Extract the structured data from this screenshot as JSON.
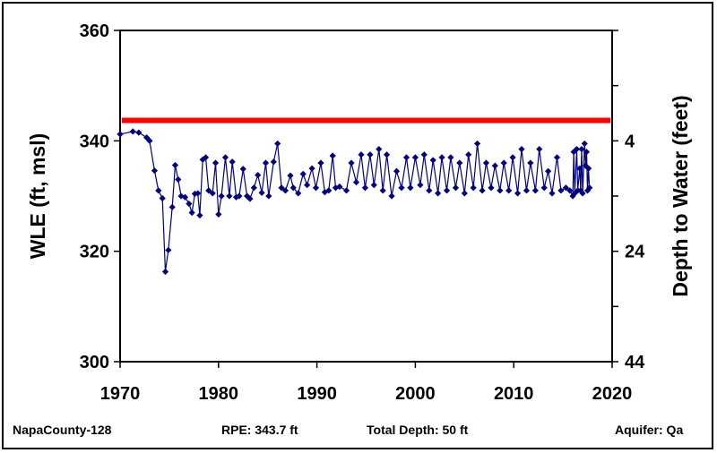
{
  "chart_data": {
    "type": "line",
    "title": "",
    "xlabel": "",
    "ylabel": "WLE (ft, msl)",
    "y2label": "Depth to Water (feet)",
    "xlim": [
      1970,
      2020
    ],
    "ylim": [
      300,
      360
    ],
    "y2lim": [
      44,
      -16
    ],
    "grid": false,
    "x_ticks": [
      "1970",
      "1980",
      "1990",
      "2000",
      "2010",
      "2020"
    ],
    "y_ticks": [
      "300",
      "320",
      "340",
      "360"
    ],
    "y2_ticks": [
      "4",
      "24",
      "44"
    ],
    "reference_line": {
      "value": 343.7,
      "label": "RPE",
      "color": "#ff0000"
    },
    "series": [
      {
        "color": "#000080",
        "marker": "diamond",
        "x": [
          1970.0,
          1971.3,
          1971.9,
          1972.7,
          1973.0,
          1973.5,
          1973.9,
          1974.3,
          1974.6,
          1974.9,
          1975.3,
          1975.6,
          1975.9,
          1976.2,
          1976.6,
          1977.0,
          1977.3,
          1977.6,
          1977.9,
          1978.1,
          1978.4,
          1978.7,
          1979.0,
          1979.4,
          1979.7,
          1980.0,
          1980.3,
          1980.7,
          1981.1,
          1981.4,
          1981.8,
          1982.1,
          1982.5,
          1982.9,
          1983.2,
          1983.6,
          1984.0,
          1984.4,
          1984.8,
          1985.1,
          1985.6,
          1986.0,
          1986.4,
          1986.8,
          1987.3,
          1987.6,
          1988.1,
          1988.6,
          1989.0,
          1989.5,
          1989.9,
          1990.4,
          1990.8,
          1991.2,
          1991.6,
          1991.9,
          1992.3,
          1993.0,
          1993.5,
          1994.0,
          1994.5,
          1994.9,
          1995.4,
          1995.8,
          1996.3,
          1996.7,
          1997.1,
          1997.6,
          1998.1,
          1998.6,
          1999.1,
          1999.5,
          2000.0,
          2000.5,
          2000.9,
          2001.4,
          2001.8,
          2002.3,
          2002.7,
          2003.2,
          2003.6,
          2004.1,
          2004.5,
          2005.0,
          2005.4,
          2005.9,
          2006.3,
          2006.8,
          2007.2,
          2007.7,
          2008.1,
          2008.6,
          2009.0,
          2009.5,
          2009.9,
          2010.4,
          2010.8,
          2011.3,
          2011.7,
          2012.2,
          2012.6,
          2013.1,
          2013.5,
          2013.9,
          2014.4,
          2014.8,
          2015.3,
          2015.7,
          2016.0,
          2016.1,
          2016.2,
          2016.4,
          2016.5,
          2016.7,
          2016.8,
          2016.9,
          2017.0,
          2017.2,
          2017.3,
          2017.4,
          2017.5,
          2017.6,
          2017.7
        ],
        "y": [
          341.2,
          341.7,
          341.5,
          340.6,
          340.0,
          334.6,
          331.0,
          329.6,
          316.3,
          320.2,
          328.0,
          335.6,
          333.0,
          330.0,
          329.8,
          328.6,
          327.0,
          330.4,
          330.5,
          326.5,
          336.6,
          337.0,
          331.0,
          330.5,
          336.0,
          326.7,
          330.0,
          337.0,
          330.0,
          336.2,
          329.8,
          330.0,
          334.9,
          330.0,
          329.5,
          331.5,
          333.8,
          330.6,
          336.0,
          330.0,
          336.2,
          339.5,
          331.5,
          331.0,
          333.7,
          331.5,
          330.5,
          334.0,
          332.0,
          335.0,
          331.5,
          336.0,
          330.7,
          331.0,
          337.3,
          331.5,
          331.7,
          331.0,
          336.0,
          332.5,
          337.5,
          331.5,
          337.5,
          332.0,
          338.5,
          331.0,
          337.5,
          330.0,
          334.5,
          331.5,
          337.0,
          331.5,
          337.0,
          332.0,
          337.5,
          331.0,
          336.5,
          330.5,
          337.0,
          331.0,
          337.0,
          331.5,
          336.0,
          330.5,
          337.5,
          331.5,
          339.5,
          331.0,
          336.0,
          331.5,
          335.5,
          331.0,
          336.0,
          331.0,
          337.0,
          330.5,
          338.5,
          331.0,
          336.0,
          331.0,
          338.5,
          331.5,
          334.5,
          330.5,
          337.0,
          331.0,
          331.5,
          331.0,
          330.0,
          338.0,
          330.5,
          338.5,
          331.0,
          335.0,
          331.0,
          338.5,
          330.5,
          339.5,
          335.5,
          338.0,
          331.0,
          335.0,
          331.5
        ]
      }
    ]
  },
  "footer": {
    "well_id": "NapaCounty-128",
    "rpe": "RPE: 343.7 ft",
    "total_depth": "Total Depth: 50 ft",
    "aquifer": "Aquifer: Qa"
  }
}
